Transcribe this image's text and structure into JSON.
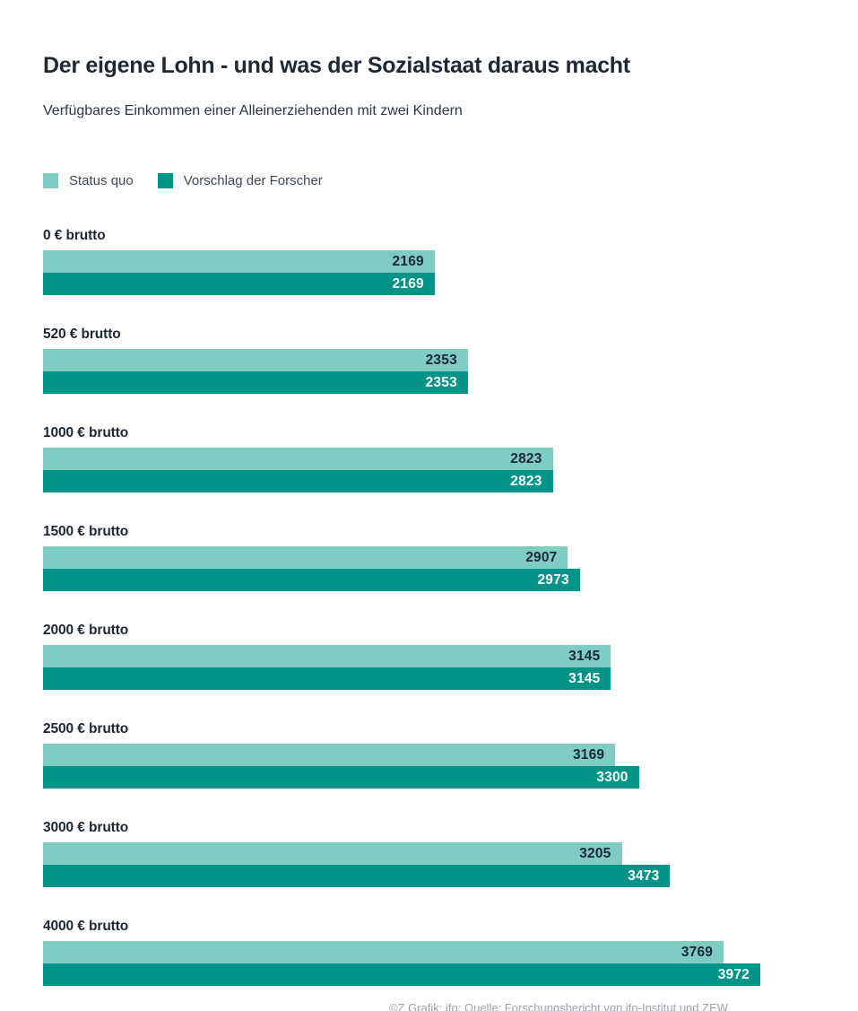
{
  "page": {
    "title": "Der eigene Lohn - und was der Sozialstaat daraus macht",
    "subtitle": "Verfügbares Einkommen einer Alleinerziehenden mit zwei Kindern",
    "attribution": "©Z Grafik; ifo; Quelle: Forschungsbericht von ifo-Institut und ZEW"
  },
  "colors": {
    "status_quo": "#7fcdc2",
    "vorschlag": "#009489",
    "heading": "#1e2936",
    "value_on_light": "#1c2735",
    "value_on_dark": "#ffffff",
    "background": "#ffffff"
  },
  "chart_data": {
    "type": "bar",
    "orientation": "horizontal",
    "title": "Der eigene Lohn - und was der Sozialstaat daraus macht",
    "subtitle": "Verfügbares Einkommen einer Alleinerziehenden mit zwei Kindern",
    "categories": [
      "0 € brutto",
      "520 € brutto",
      "1000 € brutto",
      "1500 € brutto",
      "2000 € brutto",
      "2500 € brutto",
      "3000 € brutto",
      "4000 € brutto"
    ],
    "series": [
      {
        "name": "Status quo",
        "color": "#7fcdc2",
        "values": [
          2169,
          2353,
          2823,
          2907,
          3145,
          3169,
          3205,
          3769
        ]
      },
      {
        "name": "Vorschlag der Forscher",
        "color": "#009489",
        "values": [
          2169,
          2353,
          2823,
          2973,
          3145,
          3300,
          3473,
          3972
        ]
      }
    ],
    "xlim": [
      0,
      3972
    ],
    "value_labels": "inside-end",
    "grid": false,
    "legend_position": "top-left"
  }
}
